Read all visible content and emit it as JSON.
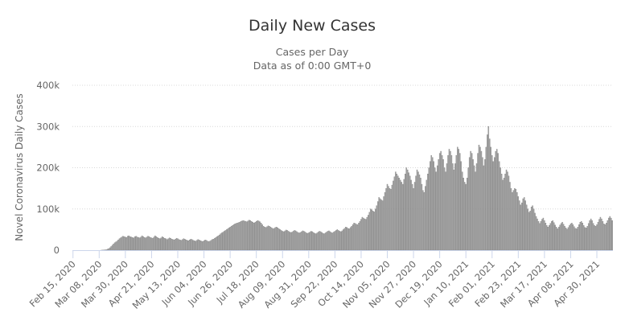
{
  "chart_data": {
    "type": "bar",
    "title": "Daily New Cases",
    "subtitle": "Cases per Day",
    "subtitle2": "Data as of 0:00 GMT+0",
    "ylabel": "Novel Coronavirus Daily Cases",
    "xlabel": "",
    "ylim": [
      0,
      400000
    ],
    "yticks": [
      {
        "value": 0,
        "label": "0"
      },
      {
        "value": 100000,
        "label": "100k"
      },
      {
        "value": 200000,
        "label": "200k"
      },
      {
        "value": 300000,
        "label": "300k"
      },
      {
        "value": 400000,
        "label": "400k"
      }
    ],
    "x_start": "2020-02-15",
    "x_end": "2021-05-13",
    "xticks": [
      "Feb 15, 2020",
      "Mar 08, 2020",
      "Mar 30, 2020",
      "Apr 21, 2020",
      "May 13, 2020",
      "Jun 04, 2020",
      "Jun 26, 2020",
      "Jul 18, 2020",
      "Aug 09, 2020",
      "Aug 31, 2020",
      "Sep 22, 2020",
      "Oct 14, 2020",
      "Nov 05, 2020",
      "Nov 27, 2020",
      "Dec 19, 2020",
      "Jan 10, 2021",
      "Feb 01, 2021",
      "Feb 23, 2021",
      "Mar 17, 2021",
      "Apr 08, 2021",
      "Apr 30, 2021"
    ],
    "grid": true,
    "legend": "none",
    "bar_color": "#aaaaaa",
    "series": [
      {
        "values": [
          0,
          0,
          0,
          0,
          0,
          0,
          0,
          0,
          0,
          0,
          0,
          0,
          0,
          0,
          0,
          0,
          0,
          0,
          0,
          0,
          0,
          0,
          0,
          0,
          200,
          300,
          500,
          800,
          1200,
          2500,
          4000,
          6000,
          9000,
          12000,
          15000,
          18000,
          20000,
          22000,
          25000,
          28000,
          30000,
          32000,
          34000,
          33000,
          32000,
          31000,
          34000,
          35000,
          33000,
          32000,
          31000,
          30000,
          33000,
          34000,
          32000,
          31000,
          30000,
          32000,
          35000,
          33000,
          31000,
          30000,
          32000,
          34000,
          33000,
          31000,
          30000,
          29000,
          32000,
          35000,
          33000,
          31000,
          29000,
          28000,
          30000,
          33000,
          31000,
          29000,
          28000,
          26000,
          28000,
          30000,
          29000,
          27000,
          26000,
          25000,
          27000,
          29000,
          28000,
          26000,
          25000,
          24000,
          26000,
          28000,
          27000,
          25000,
          24000,
          23000,
          25000,
          27000,
          26000,
          24000,
          23000,
          22000,
          24000,
          26000,
          25000,
          23000,
          22000,
          21000,
          23000,
          25000,
          24000,
          22000,
          21000,
          22000,
          24000,
          26000,
          27000,
          29000,
          31000,
          33000,
          35000,
          37000,
          40000,
          42000,
          44000,
          46000,
          48000,
          50000,
          52000,
          54000,
          56000,
          58000,
          60000,
          62000,
          64000,
          65000,
          66000,
          67000,
          68000,
          70000,
          71000,
          72000,
          71000,
          70000,
          69000,
          71000,
          73000,
          72000,
          70000,
          68000,
          66000,
          68000,
          70000,
          72000,
          71000,
          69000,
          66000,
          62000,
          58000,
          56000,
          55000,
          57000,
          59000,
          58000,
          56000,
          54000,
          52000,
          53000,
          55000,
          56000,
          54000,
          52000,
          50000,
          48000,
          46000,
          45000,
          47000,
          49000,
          48000,
          46000,
          44000,
          43000,
          44000,
          46000,
          48000,
          47000,
          45000,
          43000,
          42000,
          43000,
          45000,
          47000,
          46000,
          44000,
          42000,
          41000,
          42000,
          44000,
          46000,
          45000,
          43000,
          41000,
          40000,
          42000,
          44000,
          46000,
          45000,
          43000,
          41000,
          40000,
          42000,
          44000,
          46000,
          47000,
          45000,
          43000,
          42000,
          44000,
          46000,
          48000,
          50000,
          48000,
          46000,
          45000,
          47000,
          50000,
          53000,
          56000,
          55000,
          53000,
          52000,
          55000,
          58000,
          62000,
          66000,
          65000,
          63000,
          62000,
          66000,
          70000,
          75000,
          80000,
          78000,
          76000,
          75000,
          80000,
          85000,
          92000,
          100000,
          98000,
          95000,
          93000,
          100000,
          108000,
          118000,
          128000,
          125000,
          122000,
          120000,
          130000,
          140000,
          150000,
          160000,
          155000,
          150000,
          148000,
          158000,
          168000,
          178000,
          190000,
          185000,
          180000,
          175000,
          170000,
          165000,
          160000,
          172000,
          185000,
          200000,
          195000,
          188000,
          180000,
          170000,
          160000,
          150000,
          165000,
          180000,
          195000,
          190000,
          183000,
          175000,
          160000,
          145000,
          140000,
          155000,
          170000,
          185000,
          200000,
          215000,
          230000,
          225000,
          215000,
          200000,
          190000,
          205000,
          220000,
          235000,
          240000,
          230000,
          220000,
          200000,
          190000,
          210000,
          230000,
          245000,
          240000,
          230000,
          210000,
          195000,
          210000,
          230000,
          250000,
          245000,
          235000,
          215000,
          190000,
          175000,
          165000,
          160000,
          175000,
          200000,
          225000,
          240000,
          235000,
          220000,
          205000,
          190000,
          210000,
          235000,
          255000,
          250000,
          240000,
          225000,
          205000,
          220000,
          250000,
          280000,
          300000,
          270000,
          250000,
          230000,
          215000,
          225000,
          240000,
          245000,
          235000,
          215000,
          200000,
          185000,
          170000,
          175000,
          185000,
          195000,
          190000,
          180000,
          165000,
          150000,
          140000,
          145000,
          150000,
          148000,
          140000,
          130000,
          120000,
          110000,
          115000,
          125000,
          128000,
          120000,
          110000,
          100000,
          92000,
          95000,
          105000,
          108000,
          100000,
          90000,
          82000,
          76000,
          70000,
          65000,
          70000,
          75000,
          78000,
          72000,
          66000,
          60000,
          56000,
          60000,
          65000,
          70000,
          72000,
          67000,
          61000,
          56000,
          52000,
          56000,
          61000,
          65000,
          68000,
          63000,
          58000,
          54000,
          51000,
          55000,
          60000,
          64000,
          66000,
          62000,
          57000,
          53000,
          52000,
          56000,
          62000,
          68000,
          70000,
          66000,
          60000,
          55000,
          54000,
          58000,
          65000,
          72000,
          76000,
          72000,
          65000,
          60000,
          58000,
          62000,
          68000,
          75000,
          80000,
          76000,
          70000,
          64000,
          62000,
          66000,
          72000,
          78000,
          82000,
          78000,
          72000,
          66000,
          62000,
          64000,
          70000,
          75000,
          78000,
          74000,
          68000,
          62000,
          58000,
          56000,
          58000,
          62000,
          64000,
          60000,
          55000,
          50000,
          48000,
          50000,
          55000,
          58000,
          56000,
          50000,
          45000,
          40000,
          42000,
          46000
        ]
      }
    ]
  }
}
